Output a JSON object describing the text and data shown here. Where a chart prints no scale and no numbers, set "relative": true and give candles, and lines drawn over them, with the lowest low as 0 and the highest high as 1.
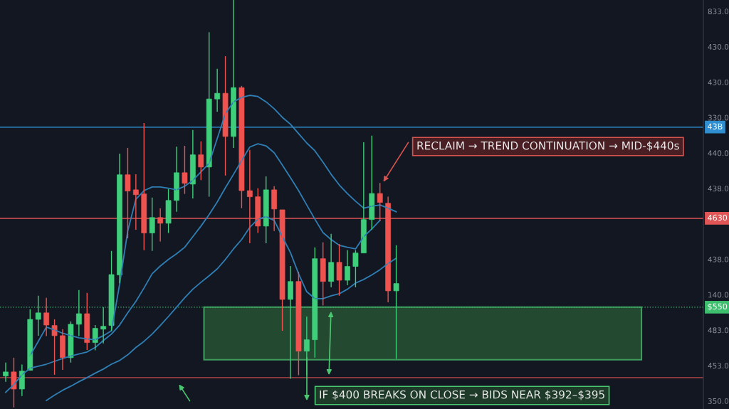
{
  "chart_data": {
    "type": "candlestick",
    "relative": true,
    "grid": false,
    "categories": [
      null,
      null,
      null,
      null,
      null,
      null,
      null,
      null,
      null,
      null,
      null,
      null,
      null,
      null,
      null,
      null,
      null,
      null,
      null,
      null,
      null,
      null,
      null,
      null,
      null,
      null,
      null,
      null,
      null,
      null,
      null,
      null,
      null,
      null,
      null,
      null,
      null,
      null,
      null,
      null,
      null,
      null,
      null,
      null,
      null,
      null,
      null,
      null,
      null
    ],
    "ohlc": [
      [
        0.077,
        0.11,
        0.063,
        0.087
      ],
      [
        0.087,
        0.122,
        0.0,
        0.045
      ],
      [
        0.045,
        0.105,
        0.028,
        0.089
      ],
      [
        0.091,
        0.241,
        0.091,
        0.216
      ],
      [
        0.216,
        0.274,
        0.176,
        0.232
      ],
      [
        0.232,
        0.269,
        0.175,
        0.202
      ],
      [
        0.201,
        0.216,
        0.08,
        0.176
      ],
      [
        0.176,
        0.192,
        0.092,
        0.122
      ],
      [
        0.122,
        0.211,
        0.11,
        0.204
      ],
      [
        0.204,
        0.288,
        0.175,
        0.23
      ],
      [
        0.23,
        0.281,
        0.141,
        0.159
      ],
      [
        0.159,
        0.202,
        0.14,
        0.194
      ],
      [
        0.192,
        0.246,
        0.157,
        0.199
      ],
      [
        0.201,
        0.384,
        0.188,
        0.326
      ],
      [
        0.325,
        0.623,
        0.305,
        0.571
      ],
      [
        0.571,
        0.637,
        0.415,
        0.531
      ],
      [
        0.534,
        0.572,
        0.436,
        0.522
      ],
      [
        0.524,
        0.698,
        0.386,
        0.428
      ],
      [
        0.428,
        0.515,
        0.384,
        0.466
      ],
      [
        0.466,
        0.489,
        0.407,
        0.452
      ],
      [
        0.452,
        0.536,
        0.428,
        0.508
      ],
      [
        0.508,
        0.64,
        0.48,
        0.576
      ],
      [
        0.576,
        0.642,
        0.524,
        0.55
      ],
      [
        0.548,
        0.681,
        0.513,
        0.62
      ],
      [
        0.62,
        0.653,
        0.558,
        0.59
      ],
      [
        0.59,
        0.921,
        0.517,
        0.757
      ],
      [
        0.757,
        0.831,
        0.726,
        0.771
      ],
      [
        0.771,
        0.862,
        0.569,
        0.665
      ],
      [
        0.665,
        1.0,
        0.637,
        0.785
      ],
      [
        0.785,
        0.789,
        0.489,
        0.532
      ],
      [
        0.532,
        0.632,
        0.403,
        0.517
      ],
      [
        0.517,
        0.538,
        0.428,
        0.445
      ],
      [
        0.445,
        0.567,
        0.403,
        0.534
      ],
      [
        0.534,
        0.543,
        0.433,
        0.487
      ],
      [
        0.485,
        0.485,
        0.188,
        0.265
      ],
      [
        0.265,
        0.347,
        0.07,
        0.309
      ],
      [
        0.309,
        0.333,
        0.079,
        0.138
      ],
      [
        0.138,
        0.223,
        0.079,
        0.166
      ],
      [
        0.166,
        0.393,
        0.122,
        0.365
      ],
      [
        0.365,
        0.405,
        0.25,
        0.309
      ],
      [
        0.309,
        0.426,
        0.295,
        0.356
      ],
      [
        0.356,
        0.401,
        0.274,
        0.312
      ],
      [
        0.312,
        0.386,
        0.3,
        0.346
      ],
      [
        0.346,
        0.386,
        0.295,
        0.379
      ],
      [
        0.379,
        0.651,
        0.379,
        0.461
      ],
      [
        0.461,
        0.667,
        0.436,
        0.525
      ],
      [
        0.525,
        0.551,
        0.457,
        0.503
      ],
      [
        0.501,
        0.517,
        0.258,
        0.286
      ],
      [
        0.286,
        0.398,
        0.119,
        0.304
      ]
    ],
    "series": [
      {
        "type": "line",
        "color": "#2f7fb5",
        "values": [
          null,
          null,
          null,
          0.127,
          0.162,
          0.197,
          0.19,
          0.182,
          0.176,
          0.171,
          0.168,
          0.166,
          0.176,
          0.188,
          0.302,
          0.433,
          0.511,
          0.532,
          0.541,
          0.541,
          0.538,
          0.534,
          0.543,
          0.557,
          0.578,
          0.599,
          0.66,
          0.721,
          0.75,
          0.761,
          0.766,
          0.763,
          0.75,
          0.733,
          0.712,
          0.695,
          0.672,
          0.649,
          0.63,
          0.602,
          0.572,
          0.546,
          0.525,
          0.506,
          0.489,
          0.494,
          0.497,
          0.489,
          0.48
        ]
      },
      {
        "type": "line",
        "color": "#2f7fb5",
        "values": [
          0.037,
          0.056,
          0.08,
          0.096,
          0.101,
          0.106,
          0.113,
          0.12,
          0.126,
          0.131,
          0.136,
          0.147,
          0.164,
          0.18,
          0.202,
          0.232,
          0.26,
          0.293,
          0.328,
          0.347,
          0.363,
          0.377,
          0.393,
          0.419,
          0.445,
          0.473,
          0.504,
          0.539,
          0.572,
          0.606,
          0.639,
          0.647,
          0.642,
          0.625,
          0.595,
          0.564,
          0.532,
          0.497,
          0.462,
          0.429,
          0.412,
          0.398,
          0.393,
          0.389,
          0.419,
          0.438,
          0.459,
          null,
          null
        ]
      },
      {
        "type": "line",
        "color": "#2f7fb5",
        "values": [
          null,
          null,
          null,
          null,
          null,
          0.017,
          0.03,
          0.042,
          0.052,
          0.063,
          0.073,
          0.084,
          0.094,
          0.106,
          0.115,
          0.129,
          0.147,
          0.162,
          0.18,
          0.201,
          0.223,
          0.246,
          0.269,
          0.29,
          0.307,
          0.323,
          0.34,
          0.363,
          0.389,
          0.412,
          0.442,
          0.462,
          0.468,
          0.459,
          0.419,
          0.38,
          0.328,
          0.284,
          0.267,
          0.267,
          0.274,
          0.279,
          0.29,
          0.305,
          0.314,
          0.325,
          0.338,
          0.353,
          0.366
        ]
      }
    ],
    "ref_lines": [
      {
        "axis": "y",
        "value": 0.688,
        "color": "#2f8fd0",
        "line_style": "solid"
      },
      {
        "axis": "y",
        "value": 0.464,
        "color": "#e05555",
        "line_style": "solid"
      },
      {
        "axis": "y",
        "value": 0.246,
        "color": "#3dbf6e",
        "line_style": "dotted"
      },
      {
        "axis": "y",
        "value": 0.073,
        "color": "#c04848",
        "line_style": "solid"
      }
    ],
    "bands": [
      {
        "axis": "y",
        "from": 0.117,
        "to": 0.246,
        "color": "#2a5a36"
      }
    ],
    "annotations": [
      "RECLAIM → TREND CONTINUATION → MID-$440s",
      "IF $400 BREAKS ON CLOSE → BIDS NEAR $392–$395",
      "833.0",
      "430.0",
      "430.0",
      "330.0",
      "440.0",
      "438.0",
      "438.0",
      "140.0",
      "483.0",
      "453.0",
      "350.0",
      "43B",
      "4630",
      "$550"
    ]
  }
}
